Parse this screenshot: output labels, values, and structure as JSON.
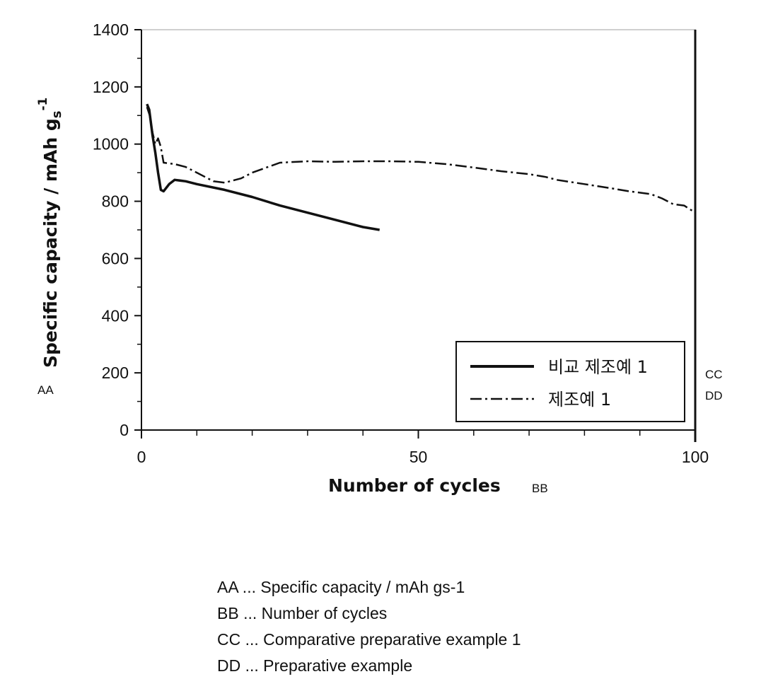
{
  "chart_data": {
    "type": "line",
    "title": "",
    "xlabel": "Number of cycles",
    "ylabel": "Specific capacity / mAh g",
    "ylabel_sub": "s",
    "ylabel_sup": "-1",
    "xlim": [
      0,
      100
    ],
    "ylim": [
      0,
      1400
    ],
    "x_ticks": [
      "0",
      "50",
      "100"
    ],
    "y_ticks": [
      "0",
      "200",
      "400",
      "600",
      "800",
      "1000",
      "1200",
      "1400"
    ],
    "grid": false,
    "legend_position": "bottom-right",
    "series": [
      {
        "name": "비교 제조예 1",
        "style": "solid",
        "color": "#111111",
        "x": [
          1,
          1.4,
          2,
          2.5,
          3,
          3.5,
          4,
          5,
          6,
          8,
          10,
          15,
          20,
          25,
          30,
          35,
          40,
          43
        ],
        "y": [
          1140,
          1120,
          1030,
          970,
          900,
          840,
          835,
          860,
          875,
          870,
          860,
          840,
          815,
          785,
          760,
          735,
          710,
          700
        ]
      },
      {
        "name": "제조예 1",
        "style": "dashdot",
        "color": "#111111",
        "x": [
          1,
          1.5,
          2,
          2.5,
          3,
          3.5,
          4,
          6,
          8,
          10,
          13,
          15,
          18,
          20,
          25,
          30,
          35,
          40,
          45,
          50,
          55,
          60,
          65,
          70,
          73,
          75,
          80,
          85,
          88,
          90,
          92,
          94,
          96,
          98,
          100
        ],
        "y": [
          1130,
          1100,
          1040,
          1000,
          1020,
          990,
          935,
          930,
          920,
          900,
          870,
          865,
          880,
          900,
          935,
          940,
          938,
          940,
          940,
          938,
          930,
          918,
          905,
          895,
          885,
          875,
          860,
          845,
          835,
          830,
          825,
          810,
          790,
          785,
          760
        ]
      }
    ]
  },
  "labels": {
    "aa": "AA",
    "bb": "BB",
    "cc": "CC",
    "dd": "DD"
  },
  "notes": [
    "AA ... Specific capacity / mAh gs-1",
    "BB ... Number of cycles",
    "CC ... Comparative preparative example 1",
    "DD ... Preparative example"
  ]
}
